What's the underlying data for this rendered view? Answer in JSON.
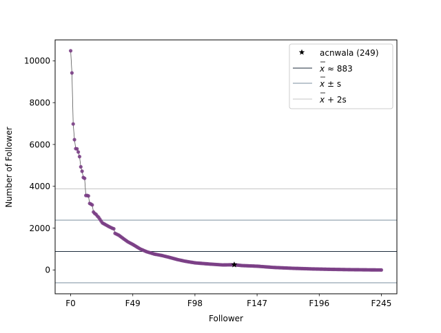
{
  "chart_data": {
    "type": "scatter",
    "title": "",
    "xlabel": "Follower",
    "ylabel": "Number of Follower",
    "xlim": [
      -12.25,
      257.25
    ],
    "ylim": [
      -1140,
      11000
    ],
    "x_ticks": [
      {
        "value": 0,
        "label": "F0"
      },
      {
        "value": 49,
        "label": "F49"
      },
      {
        "value": 98,
        "label": "F98"
      },
      {
        "value": 147,
        "label": "F147"
      },
      {
        "value": 196,
        "label": "F196"
      },
      {
        "value": 245,
        "label": "F245"
      }
    ],
    "y_ticks": [
      {
        "value": 0,
        "label": "0"
      },
      {
        "value": 2000,
        "label": "2000"
      },
      {
        "value": 4000,
        "label": "4000"
      },
      {
        "value": 6000,
        "label": "6000"
      },
      {
        "value": 8000,
        "label": "8000"
      },
      {
        "value": 10000,
        "label": "10000"
      }
    ],
    "hlines": [
      {
        "name": "mean",
        "value": 883,
        "color": "#1b2a3a"
      },
      {
        "name": "mean_plus_s",
        "value": 2380,
        "color": "#7a8c9c"
      },
      {
        "name": "mean_minus_s",
        "value": -614,
        "color": "#7a8c9c"
      },
      {
        "name": "mean_plus_2s",
        "value": 3877,
        "color": "#c4c4c4"
      }
    ],
    "series_color": "#7b3f86",
    "line_color": "#555555",
    "marker": {
      "x": 129,
      "y": 249,
      "color": "#000000"
    },
    "legend": {
      "position": "top-right",
      "entries": [
        {
          "label": "acnwala (249)"
        },
        {
          "label": "≈ 883"
        },
        {
          "label": "± s"
        },
        {
          "label": "+ 2s"
        }
      ]
    },
    "curve": {
      "count": 246,
      "anchors": [
        [
          0,
          10480
        ],
        [
          1,
          9420
        ],
        [
          2,
          6980
        ],
        [
          3,
          6230
        ],
        [
          4,
          5800
        ],
        [
          5,
          5790
        ],
        [
          6,
          5640
        ],
        [
          7,
          5420
        ],
        [
          8,
          4930
        ],
        [
          9,
          4720
        ],
        [
          10,
          4420
        ],
        [
          11,
          4380
        ],
        [
          12,
          3560
        ],
        [
          13,
          3560
        ],
        [
          14,
          3540
        ],
        [
          15,
          3180
        ],
        [
          16,
          3150
        ],
        [
          17,
          3110
        ],
        [
          18,
          2770
        ],
        [
          19,
          2700
        ],
        [
          20,
          2660
        ],
        [
          21,
          2580
        ],
        [
          22,
          2520
        ],
        [
          25,
          2250
        ],
        [
          30,
          2080
        ],
        [
          33,
          1990
        ],
        [
          34,
          1970
        ],
        [
          35,
          1750
        ],
        [
          38,
          1660
        ],
        [
          42,
          1480
        ],
        [
          45,
          1350
        ],
        [
          49,
          1220
        ],
        [
          55,
          1000
        ],
        [
          60,
          870
        ],
        [
          66,
          760
        ],
        [
          72,
          690
        ],
        [
          78,
          600
        ],
        [
          84,
          500
        ],
        [
          90,
          420
        ],
        [
          98,
          340
        ],
        [
          110,
          280
        ],
        [
          120,
          240
        ],
        [
          129,
          249
        ],
        [
          135,
          210
        ],
        [
          147,
          180
        ],
        [
          160,
          120
        ],
        [
          175,
          80
        ],
        [
          190,
          50
        ],
        [
          205,
          30
        ],
        [
          220,
          15
        ],
        [
          235,
          5
        ],
        [
          245,
          0
        ]
      ]
    }
  }
}
